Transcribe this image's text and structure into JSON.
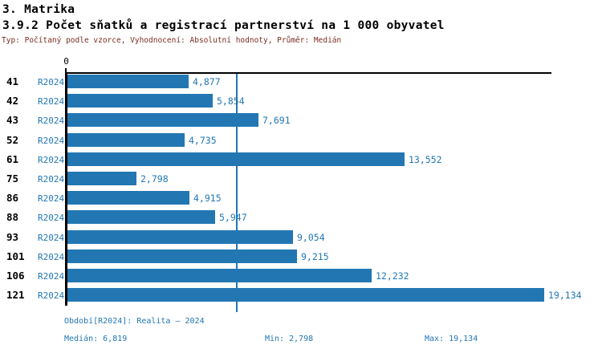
{
  "header": {
    "section_title": "3. Matrika",
    "report_title": "3.9.2 Počet sňatků a registrací partnerství na 1 000 obyvatel",
    "subtitle": "Typ: Počítaný podle vzorce, Vyhodnocení: Absolutní hodnoty, Průměr: Medián"
  },
  "chart_data": {
    "type": "bar",
    "orientation": "horizontal",
    "title": "3.9.2 Počet sňatků a registrací partnerství na 1 000 obyvatel",
    "series_label": "R2024",
    "categories": [
      "41",
      "42",
      "43",
      "52",
      "61",
      "75",
      "86",
      "88",
      "93",
      "101",
      "106",
      "121"
    ],
    "rows": [
      {
        "code": "41",
        "series": "R2024",
        "value": 4.877,
        "label": "4,877"
      },
      {
        "code": "42",
        "series": "R2024",
        "value": 5.854,
        "label": "5,854"
      },
      {
        "code": "43",
        "series": "R2024",
        "value": 7.691,
        "label": "7,691"
      },
      {
        "code": "52",
        "series": "R2024",
        "value": 4.735,
        "label": "4,735"
      },
      {
        "code": "61",
        "series": "R2024",
        "value": 13.552,
        "label": "13,552"
      },
      {
        "code": "75",
        "series": "R2024",
        "value": 2.798,
        "label": "2,798"
      },
      {
        "code": "86",
        "series": "R2024",
        "value": 4.915,
        "label": "4,915"
      },
      {
        "code": "88",
        "series": "R2024",
        "value": 5.947,
        "label": "5,947"
      },
      {
        "code": "93",
        "series": "R2024",
        "value": 9.054,
        "label": "9,054"
      },
      {
        "code": "101",
        "series": "R2024",
        "value": 9.215,
        "label": "9,215"
      },
      {
        "code": "106",
        "series": "R2024",
        "value": 12.232,
        "label": "12,232"
      },
      {
        "code": "121",
        "series": "R2024",
        "value": 19.134,
        "label": "19,134"
      }
    ],
    "x_axis": {
      "origin_label": "0",
      "xlim": [
        0,
        19.134
      ]
    },
    "median_reference_line": 6.819,
    "grid": false,
    "legend": "none",
    "colors": {
      "bar": "#2277b3",
      "axis": "#000000",
      "value_text": "#2277b3"
    }
  },
  "footer": {
    "period": "Období[R2024]: Realita – 2024",
    "median": "Medián: 6,819",
    "min": "Min: 2,798",
    "max": "Max: 19,134"
  }
}
